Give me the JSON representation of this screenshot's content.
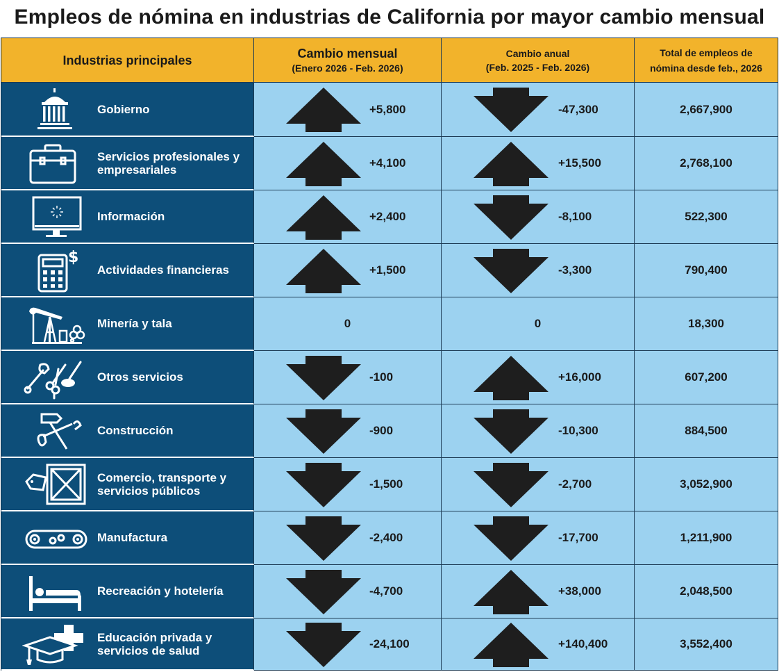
{
  "title": "Empleos de nómina en industrias de California por mayor cambio mensual",
  "headers": {
    "industry": "Industrias principales",
    "monthly_l1": "Cambio mensual",
    "monthly_l2": "(Enero 2026 - Feb. 2026)",
    "annual_l1": "Cambio anual",
    "annual_l2": "(Feb. 2025 - Feb. 2026)",
    "total_l1": "Total de empleos de",
    "total_l2": "nómina desde feb., 2026"
  },
  "colors": {
    "header": "#f2b32b",
    "industry_bg": "#0d4e79",
    "value_bg": "#9cd2f0",
    "arrow": "#1e1e1e"
  },
  "rows": [
    {
      "name": "Gobierno",
      "icon": "government-building-icon",
      "monthly": "+5,800",
      "monthly_dir": "up",
      "annual": "-47,300",
      "annual_dir": "down",
      "total": "2,667,900"
    },
    {
      "name": "Servicios profesionales y empresariales",
      "icon": "briefcase-icon",
      "monthly": "+4,100",
      "monthly_dir": "up",
      "annual": "+15,500",
      "annual_dir": "up",
      "total": "2,768,100"
    },
    {
      "name": "Información",
      "icon": "computer-monitor-icon",
      "monthly": "+2,400",
      "monthly_dir": "up",
      "annual": "-8,100",
      "annual_dir": "down",
      "total": "522,300"
    },
    {
      "name": "Actividades financieras",
      "icon": "calculator-dollar-icon",
      "monthly": "+1,500",
      "monthly_dir": "up",
      "annual": "-3,300",
      "annual_dir": "down",
      "total": "790,400"
    },
    {
      "name": "Minería y tala",
      "icon": "oil-pump-logs-icon",
      "monthly": "0",
      "monthly_dir": "none",
      "annual": "0",
      "annual_dir": "none",
      "total": "18,300"
    },
    {
      "name": "Otros servicios",
      "icon": "tools-scissors-icon",
      "monthly": "-100",
      "monthly_dir": "down",
      "annual": "+16,000",
      "annual_dir": "up",
      "total": "607,200"
    },
    {
      "name": "Construcción",
      "icon": "hammer-wrench-icon",
      "monthly": "-900",
      "monthly_dir": "down",
      "annual": "-10,300",
      "annual_dir": "down",
      "total": "884,500"
    },
    {
      "name": "Comercio, transporte y servicios públicos",
      "icon": "shipping-crate-tag-icon",
      "monthly": "-1,500",
      "monthly_dir": "down",
      "annual": "-2,700",
      "annual_dir": "down",
      "total": "3,052,900"
    },
    {
      "name": "Manufactura",
      "icon": "conveyor-gears-icon",
      "monthly": "-2,400",
      "monthly_dir": "down",
      "annual": "-17,700",
      "annual_dir": "down",
      "total": "1,211,900"
    },
    {
      "name": "Recreación y hotelería",
      "icon": "bed-icon",
      "monthly": "-4,700",
      "monthly_dir": "down",
      "annual": "+38,000",
      "annual_dir": "up",
      "total": "2,048,500"
    },
    {
      "name": "Educación privada y servicios de salud",
      "icon": "graduation-cap-medical-cross-icon",
      "monthly": "-24,100",
      "monthly_dir": "down",
      "annual": "+140,400",
      "annual_dir": "up",
      "total": "3,552,400"
    }
  ]
}
